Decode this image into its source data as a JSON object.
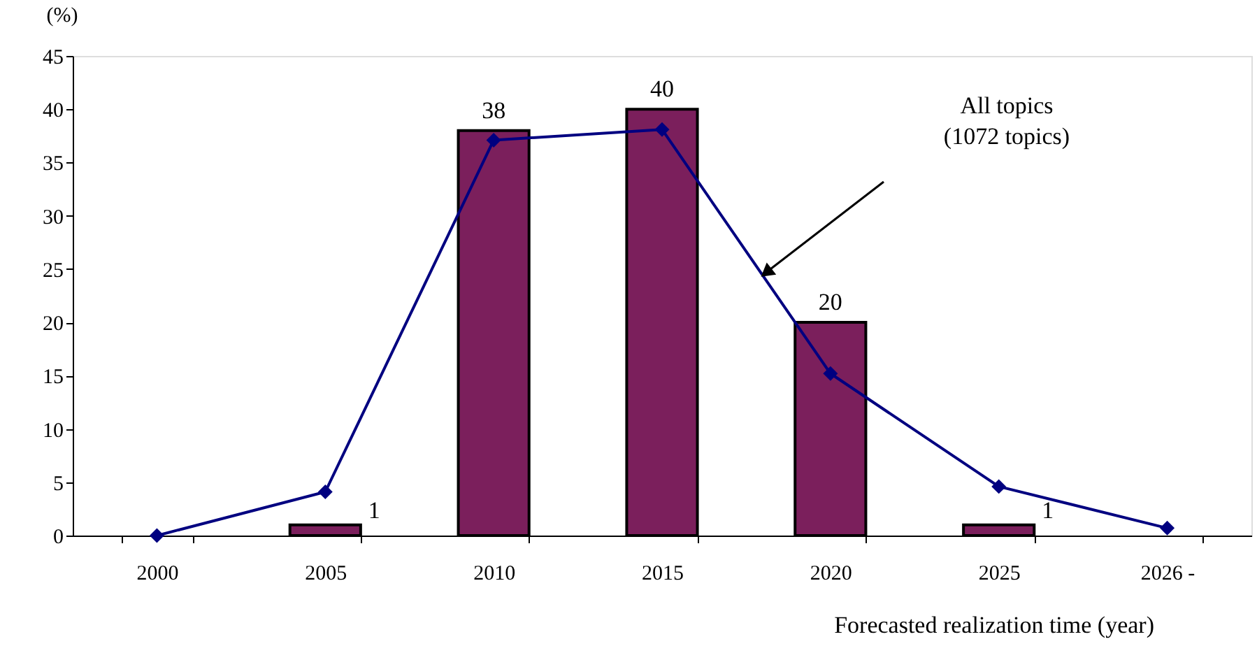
{
  "chart_data": {
    "type": "bar",
    "ylabel": "(%)",
    "xlabel": "Forecasted realization time (year)",
    "categories": [
      "2000",
      "2005",
      "2010",
      "2015",
      "2020",
      "2025",
      "2026 -"
    ],
    "series": [
      {
        "color": "#7b1f5c",
        "values": [
          null,
          1,
          38,
          40,
          20,
          1,
          null
        ],
        "value_labels": [
          null,
          "1",
          "38",
          "40",
          "20",
          "1",
          null
        ]
      },
      {
        "type": "line",
        "color": "#000080",
        "values": [
          0,
          4.1,
          37.1,
          38.1,
          15.2,
          4.6,
          0.7
        ]
      }
    ],
    "marker": "diamond",
    "line_style": "solid",
    "grid": false,
    "ylim": [
      0,
      45
    ],
    "yticks": [
      0,
      5,
      10,
      15,
      20,
      25,
      30,
      35,
      40,
      45
    ],
    "annotations": [
      "All topics\n(1072 topics)"
    ]
  }
}
